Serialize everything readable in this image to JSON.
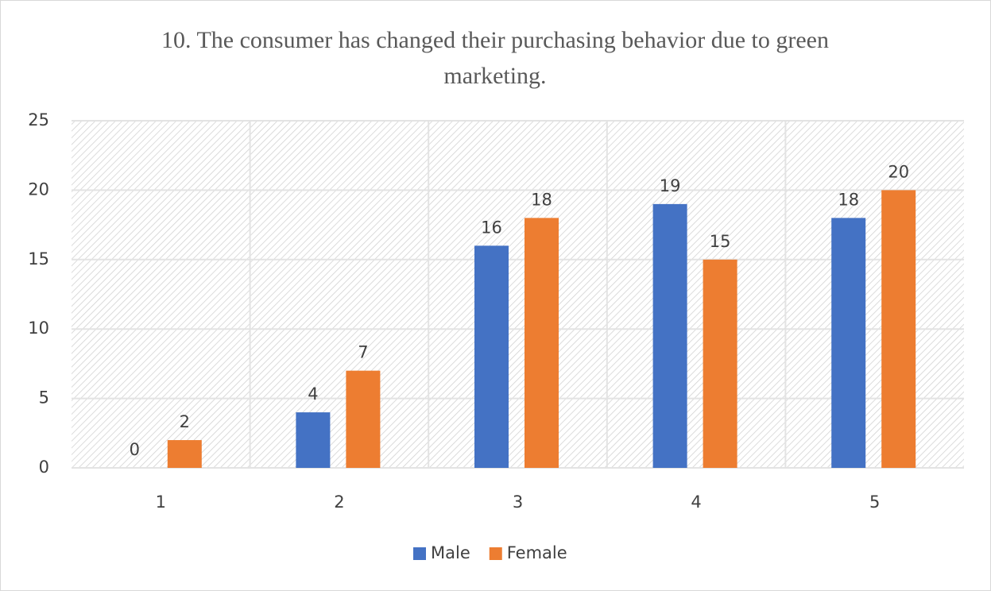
{
  "chart_data": {
    "type": "bar",
    "title": "10. The consumer has changed their purchasing behavior due to green marketing.",
    "categories": [
      "1",
      "2",
      "3",
      "4",
      "5"
    ],
    "series": [
      {
        "name": "Male",
        "color": "#4472c4",
        "values": [
          0,
          4,
          16,
          19,
          18
        ]
      },
      {
        "name": "Female",
        "color": "#ed7d31",
        "values": [
          2,
          7,
          18,
          15,
          20
        ]
      }
    ],
    "ylim": [
      0,
      25
    ],
    "yticks": [
      0,
      5,
      10,
      15,
      20,
      25
    ],
    "grid": true,
    "legend": "bottom"
  }
}
